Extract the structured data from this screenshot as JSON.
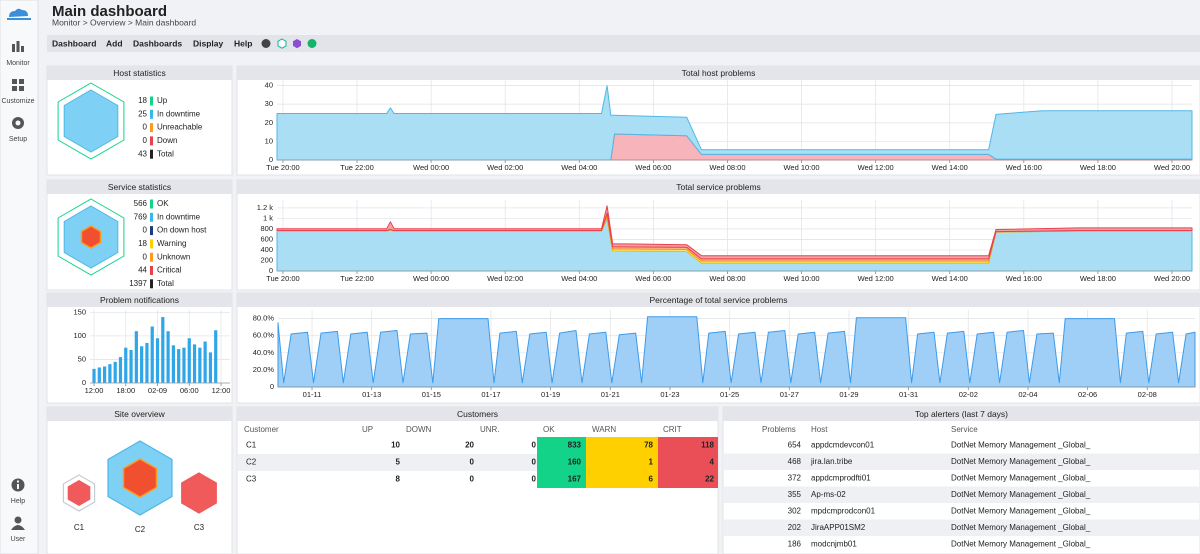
{
  "header": {
    "title": "Main dashboard",
    "breadcrumb": "Monitor > Overview > Main dashboard"
  },
  "sidebar": {
    "items": [
      "Monitor",
      "Customize",
      "Setup",
      "Help",
      "User"
    ]
  },
  "menu": [
    "Dashboard",
    "Add",
    "Dashboards",
    "Display",
    "Help"
  ],
  "host_stats": {
    "title": "Host statistics",
    "rows": [
      {
        "count": 18,
        "label": "Up",
        "color": "#13d389"
      },
      {
        "count": 25,
        "label": "In downtime",
        "color": "#33b9f0"
      },
      {
        "count": 0,
        "label": "Unreachable",
        "color": "#ff9a1f"
      },
      {
        "count": 0,
        "label": "Down",
        "color": "#e8414b"
      },
      {
        "count": 43,
        "label": "Total",
        "color": "#222222"
      }
    ]
  },
  "service_stats": {
    "title": "Service statistics",
    "rows": [
      {
        "count": 566,
        "label": "OK",
        "color": "#13d389"
      },
      {
        "count": 769,
        "label": "In downtime",
        "color": "#33b9f0"
      },
      {
        "count": 0,
        "label": "On down host",
        "color": "#1d3b7a"
      },
      {
        "count": 18,
        "label": "Warning",
        "color": "#ffd000"
      },
      {
        "count": 0,
        "label": "Unknown",
        "color": "#ff9a1f"
      },
      {
        "count": 44,
        "label": "Critical",
        "color": "#e8414b"
      },
      {
        "count": 1397,
        "label": "Total",
        "color": "#222222"
      }
    ]
  },
  "chart_data": [
    {
      "type": "area",
      "title": "Total host problems",
      "x": [
        -0.16,
        2.8,
        2.9,
        3.0,
        8.6,
        8.75,
        8.85,
        8.95,
        10.9,
        11.3,
        19.05,
        19.25,
        20.5,
        24.54
      ],
      "series": [
        {
          "color": "#f06a78",
          "fill": "#f7b4bb",
          "values": [
            0,
            0,
            0,
            0,
            0,
            0,
            0,
            14,
            13,
            3,
            3,
            0.5,
            0.5,
            0.5
          ]
        },
        {
          "color": "#4fb8e6",
          "fill": "#a9def5",
          "values": [
            25,
            25,
            28,
            25,
            25,
            40,
            24,
            10,
            10,
            2.5,
            2.5,
            24,
            26,
            26
          ]
        }
      ],
      "xlim": [
        -0.16,
        24.54
      ],
      "ylim": [
        0,
        43
      ],
      "yticks": [
        0,
        10,
        20,
        30,
        40
      ],
      "xticks": [
        {
          "value": 0,
          "label": "Tue 20:00"
        },
        {
          "value": 2,
          "label": "Tue 22:00"
        },
        {
          "value": 4,
          "label": "Wed 00:00"
        },
        {
          "value": 6,
          "label": "Wed 02:00"
        },
        {
          "value": 8,
          "label": "Wed 04:00"
        },
        {
          "value": 10,
          "label": "Wed 06:00"
        },
        {
          "value": 12,
          "label": "Wed 08:00"
        },
        {
          "value": 14,
          "label": "Wed 10:00"
        },
        {
          "value": 16,
          "label": "Wed 12:00"
        },
        {
          "value": 18,
          "label": "Wed 14:00"
        },
        {
          "value": 20,
          "label": "Wed 16:00"
        },
        {
          "value": 22,
          "label": "Wed 18:00"
        },
        {
          "value": 24,
          "label": "Wed 20:00"
        }
      ],
      "grid": true
    },
    {
      "type": "area",
      "title": "Total service problems",
      "x": [
        -0.16,
        2.8,
        2.9,
        3.0,
        8.6,
        8.75,
        8.9,
        10.9,
        11.3,
        19.05,
        19.25,
        21.5,
        24.54
      ],
      "series": [
        {
          "color": "#4fb8e6",
          "fill": "#a9def5",
          "values": [
            760,
            760,
            780,
            760,
            760,
            1000,
            380,
            370,
            150,
            150,
            740,
            760,
            760
          ]
        },
        {
          "color": "#f2c200",
          "fill": "#fde27a",
          "values": [
            5,
            5,
            5,
            5,
            5,
            40,
            40,
            40,
            40,
            40,
            5,
            5,
            5
          ]
        },
        {
          "color": "#f08a2e",
          "fill": "#f9bf8a",
          "values": [
            5,
            5,
            5,
            5,
            5,
            60,
            40,
            40,
            40,
            40,
            5,
            5,
            5
          ]
        },
        {
          "color": "#e8414b",
          "fill": "#f7a1a7",
          "values": [
            35,
            35,
            145,
            35,
            35,
            140,
            60,
            50,
            60,
            60,
            40,
            50,
            50
          ]
        }
      ],
      "xlim": [
        -0.16,
        24.54
      ],
      "ylim": [
        0,
        1350
      ],
      "yticks": [
        0,
        200,
        400,
        600,
        800,
        {
          "value": 1000,
          "label": "1 k"
        },
        {
          "value": 1200,
          "label": "1.2 k"
        }
      ],
      "xticks": [
        {
          "value": 0,
          "label": "Tue 20:00"
        },
        {
          "value": 2,
          "label": "Tue 22:00"
        },
        {
          "value": 4,
          "label": "Wed 00:00"
        },
        {
          "value": 6,
          "label": "Wed 02:00"
        },
        {
          "value": 8,
          "label": "Wed 04:00"
        },
        {
          "value": 10,
          "label": "Wed 06:00"
        },
        {
          "value": 12,
          "label": "Wed 08:00"
        },
        {
          "value": 14,
          "label": "Wed 10:00"
        },
        {
          "value": 16,
          "label": "Wed 12:00"
        },
        {
          "value": 18,
          "label": "Wed 14:00"
        },
        {
          "value": 20,
          "label": "Wed 16:00"
        },
        {
          "value": 22,
          "label": "Wed 18:00"
        },
        {
          "value": 24,
          "label": "Wed 20:00"
        }
      ],
      "grid": true
    },
    {
      "type": "bar",
      "title": "Problem notifications",
      "color": "#2ea6e8",
      "x": [
        0,
        1,
        2,
        3,
        4,
        5,
        6,
        7,
        8,
        9,
        10,
        11,
        12,
        13,
        14,
        15,
        16,
        17,
        18,
        19,
        20,
        21,
        22,
        23
      ],
      "values": [
        30,
        33,
        35,
        40,
        45,
        55,
        75,
        70,
        110,
        78,
        85,
        120,
        95,
        140,
        110,
        80,
        72,
        75,
        95,
        82,
        75,
        88,
        65,
        112
      ],
      "xlim": [
        -0.76,
        25.7
      ],
      "ylim": [
        0,
        155
      ],
      "yticks": [
        0,
        50,
        100,
        150
      ],
      "xticks": [
        {
          "value": 0,
          "label": "12:00"
        },
        {
          "value": 6,
          "label": "18:00"
        },
        {
          "value": 12,
          "label": "02-09"
        },
        {
          "value": 18,
          "label": "06:00"
        },
        {
          "value": 24,
          "label": "12:00"
        }
      ],
      "grid": true
    },
    {
      "type": "area",
      "title": "Percentage of total service problems",
      "x": [
        9.86,
        10.05,
        10.3,
        10.85,
        11.05,
        11.3,
        11.85,
        12.05,
        12.3,
        12.85,
        13.05,
        13.3,
        13.85,
        14.05,
        14.3,
        14.85,
        15.05,
        15.25,
        16.9,
        17.1,
        17.3,
        17.85,
        18.05,
        18.3,
        18.85,
        19.05,
        19.3,
        19.85,
        20.05,
        20.3,
        20.85,
        21.05,
        21.3,
        21.85,
        22.05,
        22.25,
        23.9,
        24.1,
        24.3,
        24.85,
        25.05,
        25.3,
        25.85,
        26.05,
        26.3,
        26.85,
        27.05,
        27.3,
        27.85,
        28.05,
        28.3,
        28.85,
        29.05,
        29.25,
        30.9,
        31.1,
        31.3,
        31.85,
        32.05,
        32.3,
        32.85,
        33.05,
        33.3,
        33.85,
        34.05,
        34.3,
        34.85,
        35.05,
        35.3,
        35.85,
        36.05,
        36.25,
        37.9,
        38.1,
        38.3,
        38.85,
        39.05,
        39.3,
        39.85,
        40.05,
        40.3,
        40.6
      ],
      "series": [
        {
          "color": "#3d9be9",
          "fill": "#9fcff7",
          "values": [
            75,
            5,
            62,
            64,
            5,
            63,
            65,
            5,
            62,
            64,
            5,
            64,
            66,
            5,
            62,
            63,
            5,
            80,
            80,
            5,
            63,
            65,
            5,
            62,
            64,
            5,
            63,
            66,
            5,
            62,
            64,
            5,
            61,
            63,
            5,
            82,
            82,
            5,
            63,
            65,
            5,
            62,
            64,
            5,
            64,
            66,
            5,
            62,
            64,
            5,
            63,
            65,
            5,
            81,
            81,
            5,
            62,
            64,
            5,
            63,
            65,
            5,
            62,
            64,
            5,
            64,
            66,
            5,
            62,
            63,
            5,
            80,
            80,
            5,
            63,
            65,
            5,
            62,
            64,
            5,
            62,
            64
          ]
        }
      ],
      "xlim": [
        9.86,
        40.6
      ],
      "ylim": [
        0,
        90
      ],
      "yticks": [
        0,
        {
          "value": 20,
          "label": "20.0%"
        },
        {
          "value": 40,
          "label": "40.0%"
        },
        {
          "value": 60,
          "label": "60.0%"
        },
        {
          "value": 80,
          "label": "80.0%"
        }
      ],
      "xticks": [
        {
          "value": 11,
          "label": "01-11"
        },
        {
          "value": 13,
          "label": "01-13"
        },
        {
          "value": 15,
          "label": "01-15"
        },
        {
          "value": 17,
          "label": "01-17"
        },
        {
          "value": 19,
          "label": "01-19"
        },
        {
          "value": 21,
          "label": "01-21"
        },
        {
          "value": 23,
          "label": "01-23"
        },
        {
          "value": 25,
          "label": "01-25"
        },
        {
          "value": 27,
          "label": "01-27"
        },
        {
          "value": 29,
          "label": "01-29"
        },
        {
          "value": 31,
          "label": "01-31"
        },
        {
          "value": 33,
          "label": "02-02"
        },
        {
          "value": 35,
          "label": "02-04"
        },
        {
          "value": 37,
          "label": "02-06"
        },
        {
          "value": 39,
          "label": "02-08"
        }
      ],
      "grid": true
    }
  ],
  "site_overview": {
    "title": "Site overview",
    "sites": [
      "C1",
      "C2",
      "C3"
    ]
  },
  "customers": {
    "title": "Customers",
    "columns": [
      "Customer",
      "UP",
      "DOWN",
      "UNR.",
      "OK",
      "WARN",
      "CRIT"
    ],
    "rows": [
      [
        "C1",
        10,
        20,
        0,
        833,
        78,
        118
      ],
      [
        "C2",
        5,
        0,
        0,
        160,
        1,
        4
      ],
      [
        "C3",
        8,
        0,
        0,
        167,
        6,
        22
      ]
    ],
    "column_colors": [
      null,
      null,
      null,
      null,
      "#13d389",
      "#ffd000",
      "#ea4f58"
    ]
  },
  "top_alerters": {
    "title": "Top alerters (last 7 days)",
    "columns": [
      "Problems",
      "Host",
      "Service"
    ],
    "rows": [
      [
        654,
        "appdcmdevcon01",
        "DotNet Memory Management _Global_"
      ],
      [
        468,
        "jira.lan.tribe",
        "DotNet Memory Management _Global_"
      ],
      [
        372,
        "appdcmprodfti01",
        "DotNet Memory Management _Global_"
      ],
      [
        355,
        "Ap-ms-02",
        "DotNet Memory Management _Global_"
      ],
      [
        302,
        "mpdcmprodcon01",
        "DotNet Memory Management _Global_"
      ],
      [
        202,
        "JiraAPP01SM2",
        "DotNet Memory Management _Global_"
      ],
      [
        186,
        "modcnjmb01",
        "DotNet Memory Management _Global_"
      ]
    ]
  }
}
